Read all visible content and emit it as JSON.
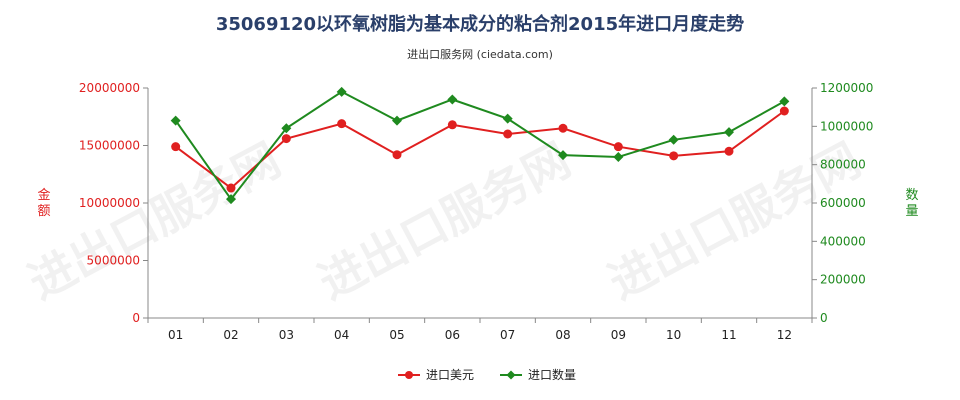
{
  "chart_data": {
    "type": "line",
    "title": "35069120以环氧树脂为基本成分的粘合剂2015年进口月度走势",
    "subtitle": "进出口服务网 (ciedata.com)",
    "watermark": "进出口服务网",
    "categories": [
      "01",
      "02",
      "03",
      "04",
      "05",
      "06",
      "07",
      "08",
      "09",
      "10",
      "11",
      "12"
    ],
    "y_left": {
      "label": "金额",
      "range": [
        0,
        20000000
      ],
      "ticks": [
        "0",
        "5000000",
        "10000000",
        "15000000",
        "20000000"
      ],
      "color": "#e02020"
    },
    "y_right": {
      "label": "数量",
      "range": [
        0,
        1200000
      ],
      "ticks": [
        "0",
        "200000",
        "400000",
        "600000",
        "800000",
        "1000000",
        "1200000"
      ],
      "color": "#1f8a1f"
    },
    "series": [
      {
        "name": "进口美元",
        "axis": "left",
        "color": "#e02020",
        "marker": "circle",
        "values": [
          14900000,
          11300000,
          15600000,
          16900000,
          14200000,
          16800000,
          16000000,
          16500000,
          14900000,
          14100000,
          14500000,
          18000000
        ]
      },
      {
        "name": "进口数量",
        "axis": "right",
        "color": "#1f8a1f",
        "marker": "diamond",
        "values": [
          1030000,
          620000,
          990000,
          1180000,
          1030000,
          1140000,
          1040000,
          850000,
          840000,
          930000,
          970000,
          1130000
        ]
      }
    ],
    "grid": false,
    "legend_position": "bottom-center"
  }
}
